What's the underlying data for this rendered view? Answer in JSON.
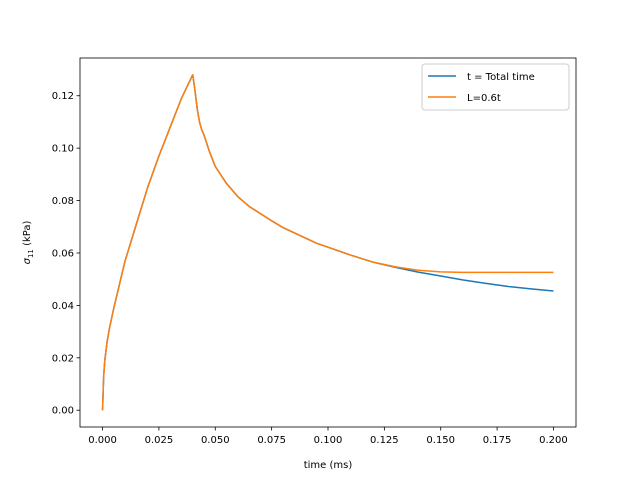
{
  "chart_data": {
    "type": "line",
    "title": "",
    "xlabel": "time (ms)",
    "ylabel_symbol": "σ",
    "ylabel_subscript": "11",
    "ylabel_unit": " (kPa)",
    "xlim": [
      -0.01,
      0.21
    ],
    "ylim": [
      -0.0064,
      0.1344
    ],
    "xticks": [
      0.0,
      0.025,
      0.05,
      0.075,
      0.1,
      0.125,
      0.15,
      0.175,
      0.2
    ],
    "xtick_labels": [
      "0.000",
      "0.025",
      "0.050",
      "0.075",
      "0.100",
      "0.125",
      "0.150",
      "0.175",
      "0.200"
    ],
    "yticks": [
      0.0,
      0.02,
      0.04,
      0.06,
      0.08,
      0.1,
      0.12
    ],
    "ytick_labels": [
      "0.00",
      "0.02",
      "0.04",
      "0.06",
      "0.08",
      "0.10",
      "0.12"
    ],
    "grid": false,
    "legend_position": "top-right",
    "series": [
      {
        "name": "t = Total time",
        "color": "#1f77b4",
        "x": [
          0.0,
          0.0005,
          0.001,
          0.002,
          0.003,
          0.004,
          0.005,
          0.0075,
          0.01,
          0.0125,
          0.015,
          0.0175,
          0.02,
          0.0225,
          0.025,
          0.0275,
          0.03,
          0.0325,
          0.035,
          0.0375,
          0.04,
          0.041,
          0.042,
          0.043,
          0.044,
          0.045,
          0.0475,
          0.05,
          0.055,
          0.06,
          0.065,
          0.07,
          0.075,
          0.08,
          0.085,
          0.09,
          0.095,
          0.1,
          0.11,
          0.12,
          0.13,
          0.14,
          0.15,
          0.16,
          0.17,
          0.18,
          0.19,
          0.2
        ],
        "y": [
          0.0,
          0.013,
          0.019,
          0.026,
          0.031,
          0.035,
          0.039,
          0.048,
          0.057,
          0.064,
          0.071,
          0.078,
          0.085,
          0.091,
          0.097,
          0.1025,
          0.108,
          0.1135,
          0.119,
          0.1235,
          0.128,
          0.122,
          0.115,
          0.11,
          0.107,
          0.105,
          0.0985,
          0.093,
          0.0865,
          0.0815,
          0.0778,
          0.075,
          0.0723,
          0.0697,
          0.0677,
          0.0657,
          0.0637,
          0.0622,
          0.0592,
          0.0565,
          0.0545,
          0.0527,
          0.0512,
          0.0497,
          0.0484,
          0.0472,
          0.0463,
          0.0455
        ]
      },
      {
        "name": "L=0.6t",
        "color": "#ff7f0e",
        "x": [
          0.0,
          0.0005,
          0.001,
          0.002,
          0.003,
          0.004,
          0.005,
          0.0075,
          0.01,
          0.0125,
          0.015,
          0.0175,
          0.02,
          0.0225,
          0.025,
          0.0275,
          0.03,
          0.0325,
          0.035,
          0.0375,
          0.04,
          0.041,
          0.042,
          0.043,
          0.044,
          0.045,
          0.0475,
          0.05,
          0.055,
          0.06,
          0.065,
          0.07,
          0.075,
          0.08,
          0.085,
          0.09,
          0.095,
          0.1,
          0.11,
          0.12,
          0.13,
          0.14,
          0.15,
          0.16,
          0.17,
          0.18,
          0.19,
          0.2
        ],
        "y": [
          0.0,
          0.013,
          0.019,
          0.026,
          0.031,
          0.035,
          0.039,
          0.048,
          0.057,
          0.064,
          0.071,
          0.078,
          0.085,
          0.091,
          0.097,
          0.1025,
          0.108,
          0.1135,
          0.119,
          0.1235,
          0.128,
          0.122,
          0.115,
          0.11,
          0.107,
          0.105,
          0.0985,
          0.093,
          0.0865,
          0.0815,
          0.0778,
          0.075,
          0.0723,
          0.0697,
          0.0677,
          0.0657,
          0.0637,
          0.0622,
          0.0592,
          0.0565,
          0.0547,
          0.0534,
          0.0528,
          0.0526,
          0.0526,
          0.0526,
          0.0526,
          0.0526
        ]
      }
    ]
  }
}
